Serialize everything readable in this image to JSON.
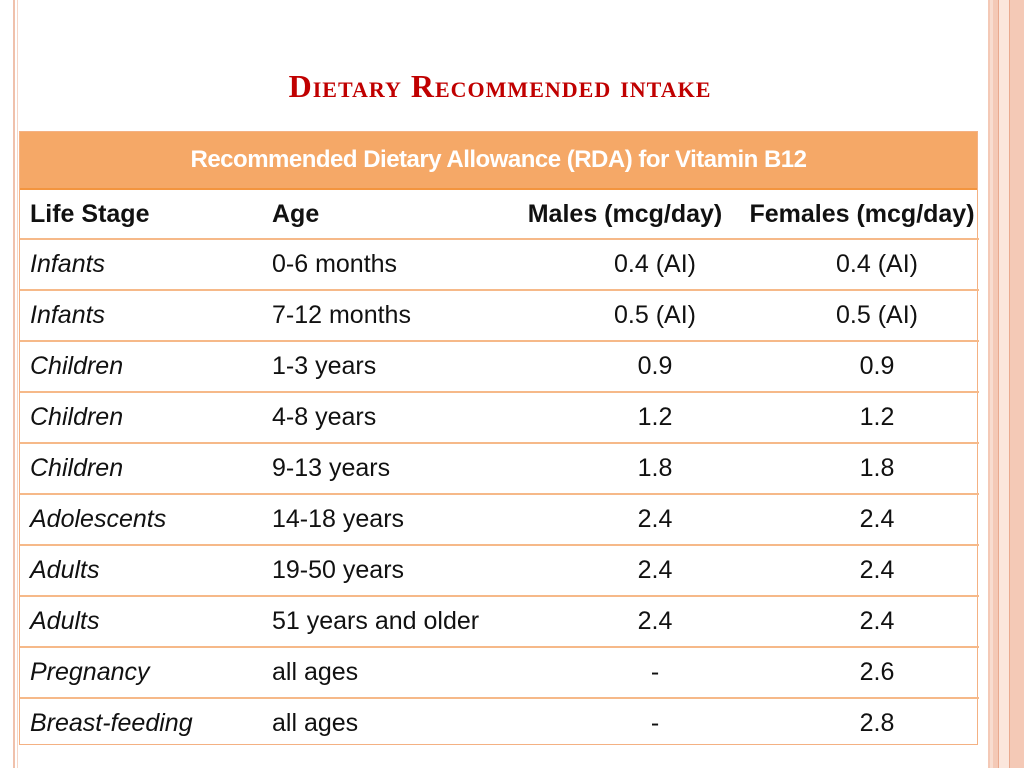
{
  "slide": {
    "title": "Dietary Recommended intake"
  },
  "table": {
    "caption": "Recommended Dietary Allowance (RDA) for Vitamin B12",
    "headers": [
      "Life Stage",
      "Age",
      "Males (mcg/day)",
      "Females (mcg/day)"
    ],
    "rows": [
      {
        "stage": "Infants",
        "age": "0-6 months",
        "males": "0.4 (AI)",
        "females": "0.4 (AI)"
      },
      {
        "stage": "Infants",
        "age": "7-12 months",
        "males": "0.5 (AI)",
        "females": "0.5 (AI)"
      },
      {
        "stage": "Children",
        "age": "1-3 years",
        "males": "0.9",
        "females": "0.9"
      },
      {
        "stage": "Children",
        "age": "4-8 years",
        "males": "1.2",
        "females": "1.2"
      },
      {
        "stage": "Children",
        "age": "9-13 years",
        "males": "1.8",
        "females": "1.8"
      },
      {
        "stage": "Adolescents",
        "age": "14-18 years",
        "males": "2.4",
        "females": "2.4"
      },
      {
        "stage": "Adults",
        "age": "19-50 years",
        "males": "2.4",
        "females": "2.4"
      },
      {
        "stage": "Adults",
        "age": "51 years and older",
        "males": "2.4",
        "females": "2.4"
      },
      {
        "stage": "Pregnancy",
        "age": "all ages",
        "males": "-",
        "females": "2.6"
      },
      {
        "stage": "Breast-feeding",
        "age": "all ages",
        "males": "-",
        "females": "2.8"
      }
    ]
  },
  "colors": {
    "title": "#c00000",
    "caption_bg": "#f5a867",
    "row_rule": "#f6b989"
  }
}
